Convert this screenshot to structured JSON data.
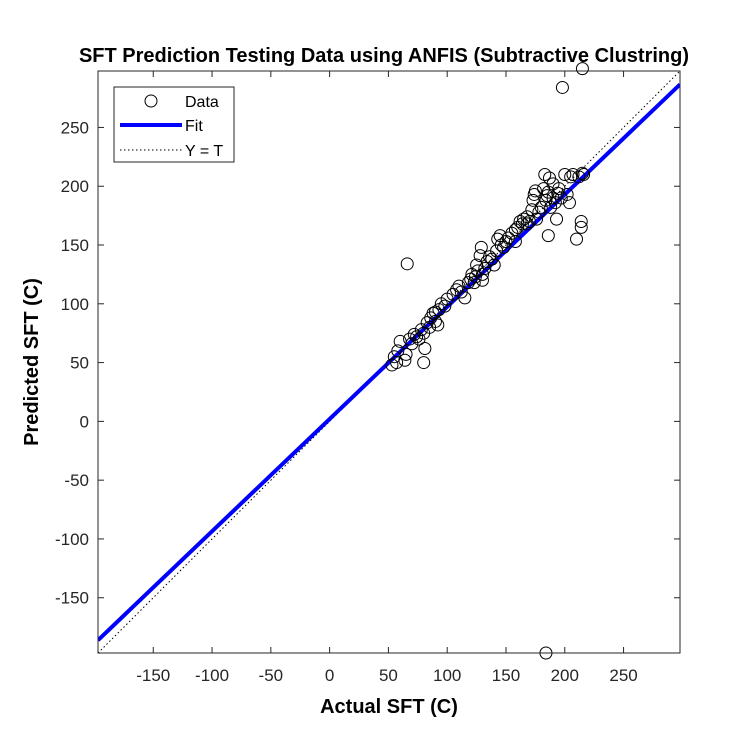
{
  "chart_data": {
    "type": "scatter",
    "title": "SFT Prediction Testing Data using ANFIS (Subtractive Clustring)",
    "xlabel": "Actual SFT (C)",
    "ylabel": "Predicted SFT (C)",
    "xlim": [
      -197,
      298
    ],
    "ylim": [
      -197,
      298
    ],
    "xticks": [
      -150,
      -100,
      -50,
      0,
      50,
      100,
      150,
      200,
      250
    ],
    "yticks": [
      -150,
      -100,
      -50,
      0,
      50,
      100,
      150,
      200,
      250
    ],
    "xtick_labels": [
      "-150",
      "-100",
      "-50",
      "0",
      "50",
      "100",
      "150",
      "200",
      "250"
    ],
    "ytick_labels": [
      "-150",
      "-100",
      "-50",
      "0",
      "50",
      "100",
      "150",
      "200",
      "250"
    ],
    "legend": {
      "position": "top-left",
      "entries": [
        "Data",
        "Fit",
        "Y = T"
      ]
    },
    "series": [
      {
        "name": "Data",
        "marker": "circle",
        "color": "#000000",
        "points": [
          [
            215,
            300
          ],
          [
            198,
            284
          ],
          [
            184,
            -197
          ],
          [
            66,
            134
          ],
          [
            53,
            48
          ],
          [
            55,
            55
          ],
          [
            57,
            50
          ],
          [
            58,
            60
          ],
          [
            60,
            68
          ],
          [
            64,
            52
          ],
          [
            65,
            57
          ],
          [
            68,
            70
          ],
          [
            70,
            66
          ],
          [
            72,
            74
          ],
          [
            74,
            72
          ],
          [
            76,
            70
          ],
          [
            78,
            78
          ],
          [
            80,
            75
          ],
          [
            80,
            50
          ],
          [
            81,
            62
          ],
          [
            83,
            84
          ],
          [
            85,
            80
          ],
          [
            86,
            88
          ],
          [
            88,
            92
          ],
          [
            90,
            85
          ],
          [
            90,
            93
          ],
          [
            92,
            82
          ],
          [
            93,
            95
          ],
          [
            95,
            100
          ],
          [
            98,
            98
          ],
          [
            100,
            104
          ],
          [
            105,
            108
          ],
          [
            108,
            112
          ],
          [
            110,
            115
          ],
          [
            112,
            110
          ],
          [
            115,
            105
          ],
          [
            118,
            118
          ],
          [
            120,
            121
          ],
          [
            121,
            125
          ],
          [
            123,
            118
          ],
          [
            124,
            123
          ],
          [
            125,
            133
          ],
          [
            126,
            128
          ],
          [
            128,
            141
          ],
          [
            129,
            148
          ],
          [
            130,
            125
          ],
          [
            130,
            120
          ],
          [
            132,
            130
          ],
          [
            134,
            136
          ],
          [
            136,
            140
          ],
          [
            138,
            138
          ],
          [
            140,
            133
          ],
          [
            142,
            145
          ],
          [
            143,
            155
          ],
          [
            145,
            158
          ],
          [
            146,
            150
          ],
          [
            148,
            148
          ],
          [
            150,
            153
          ],
          [
            152,
            156
          ],
          [
            155,
            160
          ],
          [
            158,
            163
          ],
          [
            158,
            153
          ],
          [
            160,
            165
          ],
          [
            162,
            170
          ],
          [
            164,
            168
          ],
          [
            165,
            172
          ],
          [
            168,
            174
          ],
          [
            168,
            168
          ],
          [
            170,
            170
          ],
          [
            172,
            180
          ],
          [
            173,
            188
          ],
          [
            174,
            193
          ],
          [
            175,
            196
          ],
          [
            176,
            172
          ],
          [
            178,
            178
          ],
          [
            180,
            182
          ],
          [
            182,
            198
          ],
          [
            183,
            210
          ],
          [
            184,
            188
          ],
          [
            185,
            192
          ],
          [
            186,
            195
          ],
          [
            186,
            158
          ],
          [
            187,
            207
          ],
          [
            188,
            182
          ],
          [
            190,
            190
          ],
          [
            190,
            202
          ],
          [
            192,
            186
          ],
          [
            193,
            172
          ],
          [
            194,
            194
          ],
          [
            195,
            198
          ],
          [
            197,
            190
          ],
          [
            200,
            210
          ],
          [
            202,
            193
          ],
          [
            204,
            186
          ],
          [
            205,
            208
          ],
          [
            207,
            210
          ],
          [
            210,
            155
          ],
          [
            212,
            208
          ],
          [
            214,
            170
          ],
          [
            214,
            165
          ],
          [
            215,
            211
          ],
          [
            216,
            210
          ]
        ]
      },
      {
        "name": "Fit",
        "type": "line",
        "color": "#0000ff",
        "slope": 0.955,
        "intercept": 2
      },
      {
        "name": "Y = T",
        "type": "line",
        "color": "#000000",
        "style": "dotted",
        "slope": 1,
        "intercept": 0
      }
    ]
  }
}
